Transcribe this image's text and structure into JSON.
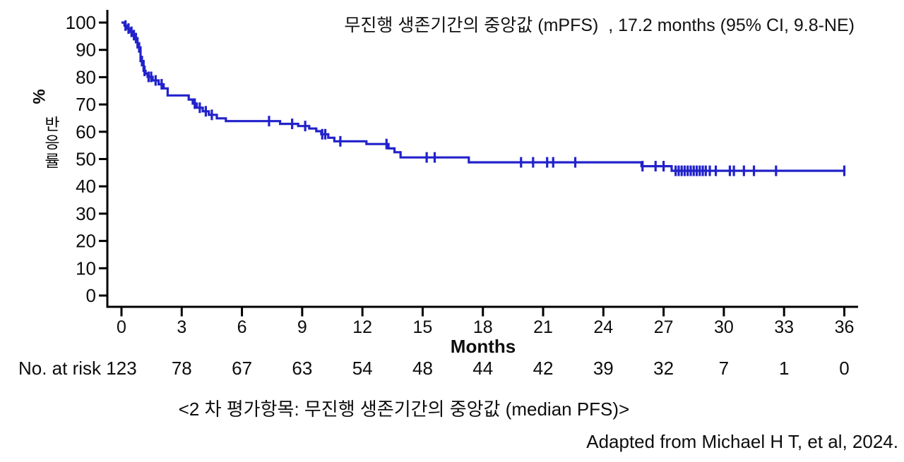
{
  "page": {
    "background": "#ffffff"
  },
  "title": {
    "text": "무진행 생존기간의 중앙값 (mPFS)  , 17.2 months (95% CI, 9.8-NE)"
  },
  "y_axis": {
    "unit": "%",
    "label": "반응률",
    "ticks": [
      100,
      90,
      80,
      70,
      60,
      50,
      40,
      30,
      20,
      10,
      0
    ]
  },
  "x_axis": {
    "label": "Months",
    "ticks": [
      0,
      3,
      6,
      9,
      12,
      15,
      18,
      21,
      24,
      27,
      30,
      33,
      36
    ]
  },
  "at_risk": {
    "label": "No. at risk",
    "values": [
      123,
      78,
      67,
      63,
      54,
      48,
      44,
      42,
      39,
      32,
      7,
      1,
      0
    ]
  },
  "caption": {
    "text": "<2 차 평가항목: 무진행 생존기간의 중앙값 (median PFS)>"
  },
  "attribution": {
    "text": "Adapted from Michael H T, et al, 2024."
  },
  "chart_data": {
    "type": "line",
    "subtype": "kaplan_meier_step",
    "title": "무진행 생존기간의 중앙값 (mPFS), 17.2 months (95% CI, 9.8-NE)",
    "xlabel": "Months",
    "ylabel": "반응률 %",
    "xlim": [
      0,
      36
    ],
    "ylim": [
      0,
      100
    ],
    "x_ticks": [
      0,
      3,
      6,
      9,
      12,
      15,
      18,
      21,
      24,
      27,
      30,
      33,
      36
    ],
    "y_ticks": [
      100,
      90,
      80,
      70,
      60,
      50,
      40,
      30,
      20,
      10,
      0
    ],
    "grid": false,
    "legend": false,
    "line_color": "#2222CB",
    "axis_color": "#000000",
    "median_months": 17.2,
    "ci_95": "9.8-NE",
    "steps": [
      [
        0,
        100
      ],
      [
        0.15,
        98.9
      ],
      [
        0.3,
        97.8
      ],
      [
        0.45,
        96.6
      ],
      [
        0.55,
        95.4
      ],
      [
        0.65,
        94.3
      ],
      [
        0.8,
        90.9
      ],
      [
        0.95,
        85.9
      ],
      [
        1.1,
        82.3
      ],
      [
        1.2,
        81.3
      ],
      [
        1.3,
        80.1
      ],
      [
        1.55,
        78.8
      ],
      [
        1.85,
        77.4
      ],
      [
        2.1,
        75.9
      ],
      [
        2.3,
        73.3
      ],
      [
        3.35,
        71.8
      ],
      [
        3.55,
        70.3
      ],
      [
        3.75,
        68.8
      ],
      [
        4.05,
        67.5
      ],
      [
        4.35,
        66.2
      ],
      [
        4.75,
        64.9
      ],
      [
        5.2,
        63.9
      ],
      [
        7.9,
        62.9
      ],
      [
        8.8,
        62.1
      ],
      [
        9.35,
        61.2
      ],
      [
        9.7,
        60.2
      ],
      [
        9.95,
        59.1
      ],
      [
        10.3,
        57.8
      ],
      [
        10.6,
        56.5
      ],
      [
        12.2,
        55.5
      ],
      [
        13.3,
        53.9
      ],
      [
        13.6,
        52.5
      ],
      [
        13.9,
        50.6
      ],
      [
        17.3,
        48.8
      ],
      [
        25.9,
        47.4
      ],
      [
        27.4,
        45.7
      ]
    ],
    "censor_marks": [
      [
        0.2,
        98.9
      ],
      [
        0.35,
        97.8
      ],
      [
        0.5,
        96.6
      ],
      [
        0.62,
        95.4
      ],
      [
        0.72,
        94.3
      ],
      [
        0.88,
        90.9
      ],
      [
        1.02,
        85.9
      ],
      [
        1.15,
        82.3
      ],
      [
        1.35,
        80.1
      ],
      [
        1.48,
        80.1
      ],
      [
        1.7,
        78.8
      ],
      [
        2.0,
        77.4
      ],
      [
        3.65,
        70.3
      ],
      [
        3.9,
        68.8
      ],
      [
        4.2,
        67.5
      ],
      [
        4.5,
        66.2
      ],
      [
        7.35,
        63.9
      ],
      [
        8.5,
        62.9
      ],
      [
        9.15,
        62.1
      ],
      [
        10.0,
        59.1
      ],
      [
        10.15,
        59.1
      ],
      [
        10.9,
        56.5
      ],
      [
        13.2,
        55.5
      ],
      [
        15.2,
        50.6
      ],
      [
        15.6,
        50.6
      ],
      [
        19.9,
        48.8
      ],
      [
        20.5,
        48.8
      ],
      [
        21.2,
        48.8
      ],
      [
        21.5,
        48.8
      ],
      [
        22.6,
        48.8
      ],
      [
        25.95,
        47.4
      ],
      [
        26.6,
        47.4
      ],
      [
        27.0,
        47.4
      ],
      [
        27.6,
        45.7
      ],
      [
        27.75,
        45.7
      ],
      [
        27.9,
        45.7
      ],
      [
        28.05,
        45.7
      ],
      [
        28.2,
        45.7
      ],
      [
        28.35,
        45.7
      ],
      [
        28.5,
        45.7
      ],
      [
        28.65,
        45.7
      ],
      [
        28.8,
        45.7
      ],
      [
        28.95,
        45.7
      ],
      [
        29.1,
        45.7
      ],
      [
        29.3,
        45.7
      ],
      [
        29.6,
        45.7
      ],
      [
        30.3,
        45.7
      ],
      [
        30.5,
        45.7
      ],
      [
        31.0,
        45.7
      ],
      [
        31.5,
        45.7
      ],
      [
        32.6,
        45.7
      ],
      [
        36.0,
        45.7
      ]
    ],
    "no_at_risk": {
      "times": [
        0,
        3,
        6,
        9,
        12,
        15,
        18,
        21,
        24,
        27,
        30,
        33,
        36
      ],
      "counts": [
        123,
        78,
        67,
        63,
        54,
        48,
        44,
        42,
        39,
        32,
        7,
        1,
        0
      ]
    }
  }
}
